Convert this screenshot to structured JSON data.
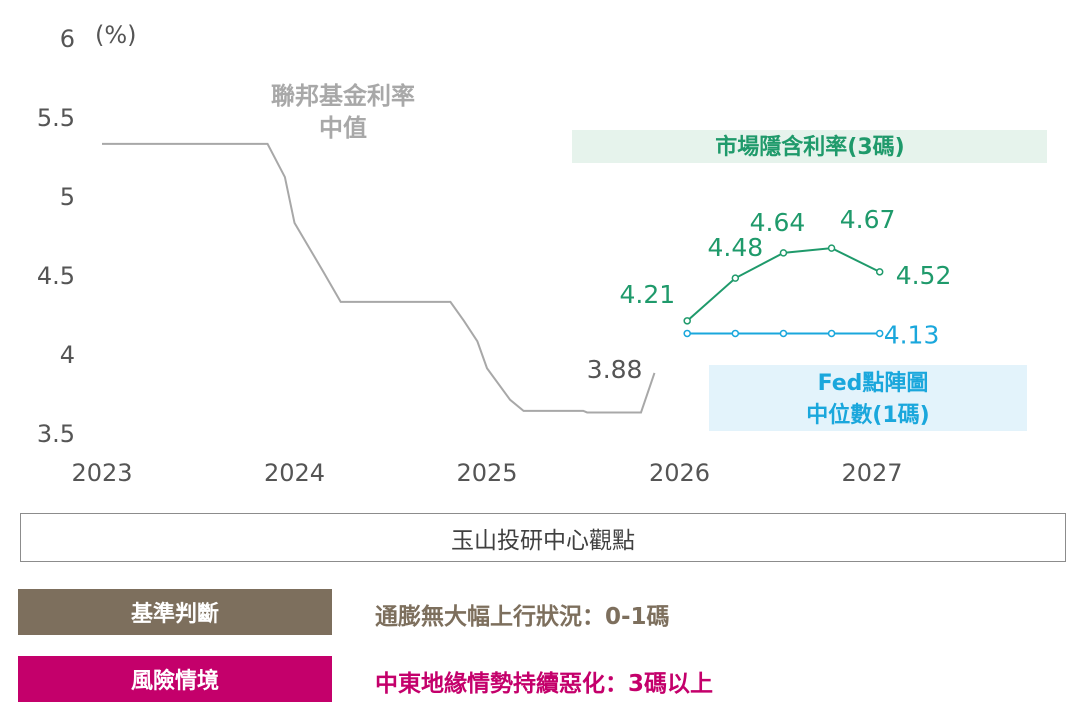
{
  "chart_data": {
    "type": "line",
    "ylabel": "(%)",
    "xlabel": "",
    "ylim": [
      3.5,
      6
    ],
    "yticks": [
      3.5,
      4,
      4.5,
      5,
      5.5,
      6
    ],
    "ytick_labels": [
      "3.5",
      "4",
      "4.5",
      "5",
      "5.5",
      "6"
    ],
    "xticks": [
      2023,
      2024,
      2025,
      2026,
      2027
    ],
    "xtick_labels": [
      "2023",
      "2024",
      "2025",
      "2026",
      "2027"
    ],
    "grid": false,
    "series": [
      {
        "name": "聯邦基金利率中值",
        "name_lines": [
          "聯邦基金利率",
          "中值"
        ],
        "color": "#a8a8a8",
        "end_label": "3.88",
        "points": [
          [
            2023.0,
            5.33
          ],
          [
            2023.86,
            5.33
          ],
          [
            2023.95,
            5.12
          ],
          [
            2024.0,
            4.83
          ],
          [
            2024.15,
            4.52
          ],
          [
            2024.24,
            4.33
          ],
          [
            2024.3,
            4.33
          ],
          [
            2024.81,
            4.33
          ],
          [
            2024.88,
            4.21
          ],
          [
            2024.95,
            4.08
          ],
          [
            2025.0,
            3.91
          ],
          [
            2025.12,
            3.71
          ],
          [
            2025.19,
            3.64
          ],
          [
            2025.5,
            3.64
          ],
          [
            2025.52,
            3.63
          ],
          [
            2025.8,
            3.63
          ],
          [
            2025.87,
            3.88
          ]
        ]
      },
      {
        "name": "市場隱含利率(3碼)",
        "color": "#1f9a6b",
        "points": [
          [
            2026.04,
            4.21
          ],
          [
            2026.29,
            4.48
          ],
          [
            2026.54,
            4.64
          ],
          [
            2026.79,
            4.67
          ],
          [
            2027.04,
            4.52
          ]
        ],
        "labels": [
          "4.21",
          "4.48",
          "4.64",
          "4.67",
          "4.52"
        ]
      },
      {
        "name": "Fed點陣圖中位數(1碼)",
        "name_lines": [
          "Fed點陣圖",
          "中位數(1碼)"
        ],
        "color": "#1aa7dc",
        "points": [
          [
            2026.04,
            4.13
          ],
          [
            2026.29,
            4.13
          ],
          [
            2026.54,
            4.13
          ],
          [
            2026.79,
            4.13
          ],
          [
            2027.04,
            4.13
          ]
        ],
        "end_label": "4.13"
      }
    ]
  },
  "viewpoint": {
    "title": "玉山投研中心觀點"
  },
  "scenarios": [
    {
      "tag": "基準判斷",
      "text": "通膨無大幅上行狀況：0-1碼",
      "color": "#7d6f5d"
    },
    {
      "tag": "風險情境",
      "text": "中東地緣情勢持續惡化：3碼以上",
      "color": "#c4006b"
    }
  ]
}
